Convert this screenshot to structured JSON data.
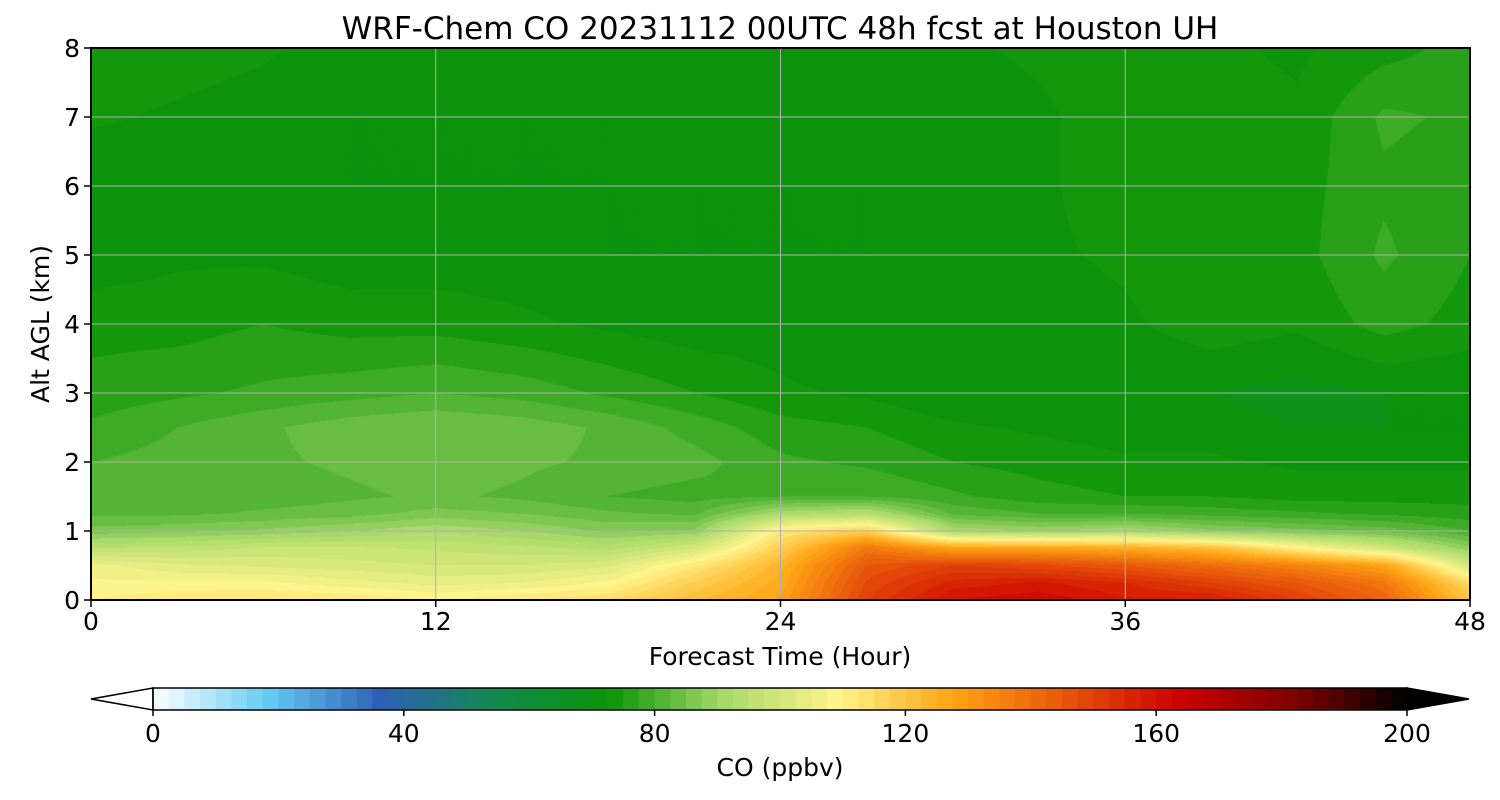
{
  "chart_data": {
    "type": "heatmap",
    "title": "WRF-Chem CO  20231112 00UTC 48h fcst at Houston UH",
    "xlabel": "Forecast Time (Hour)",
    "ylabel": "Alt AGL (km)",
    "xlim": [
      0,
      48
    ],
    "ylim": [
      0,
      8
    ],
    "x_ticks": [
      0,
      12,
      24,
      36,
      48
    ],
    "y_ticks": [
      0,
      1,
      2,
      3,
      4,
      5,
      6,
      7,
      8
    ],
    "grid": true,
    "colorbar": {
      "label": "CO  (ppbv)",
      "range": [
        0,
        200
      ],
      "ticks": [
        0,
        40,
        80,
        120,
        160,
        200
      ],
      "extend": "both",
      "colors": [
        "#ffffff",
        "#66ccf5",
        "#2d5fb5",
        "#138a50",
        "#0a9406",
        "#a6d86a",
        "#fff58c",
        "#ffa514",
        "#e8560a",
        "#cc0000",
        "#800000",
        "#000000"
      ]
    },
    "x_hours": [
      0,
      3,
      6,
      9,
      12,
      15,
      18,
      21,
      24,
      27,
      30,
      33,
      36,
      39,
      42,
      45,
      48
    ],
    "z_km": [
      0,
      0.25,
      0.5,
      0.75,
      1.0,
      1.25,
      1.5,
      2.0,
      2.5,
      3.0,
      4.0,
      5.0,
      6.0,
      7.0,
      8.0
    ],
    "values_ppbv": [
      [
        110,
        112,
        113,
        112,
        110,
        112,
        115,
        122,
        128,
        150,
        160,
        162,
        158,
        158,
        150,
        142,
        120
      ],
      [
        108,
        108,
        108,
        106,
        104,
        105,
        108,
        118,
        126,
        148,
        156,
        158,
        155,
        150,
        145,
        138,
        115
      ],
      [
        106,
        103,
        102,
        101,
        100,
        100,
        102,
        112,
        124,
        145,
        150,
        148,
        145,
        140,
        135,
        128,
        100
      ],
      [
        95,
        96,
        98,
        98,
        97,
        96,
        94,
        100,
        118,
        138,
        128,
        128,
        126,
        122,
        110,
        100,
        88
      ],
      [
        86,
        87,
        88,
        90,
        92,
        90,
        87,
        88,
        112,
        118,
        92,
        90,
        92,
        88,
        86,
        84,
        80
      ],
      [
        82,
        82,
        83,
        84,
        86,
        85,
        83,
        82,
        92,
        94,
        82,
        80,
        80,
        79,
        78,
        77,
        76
      ],
      [
        80,
        80,
        81,
        82,
        83,
        82,
        80,
        79,
        80,
        80,
        78,
        76,
        75,
        75,
        74,
        74,
        74
      ],
      [
        80,
        81,
        82,
        83,
        84,
        83,
        82,
        81,
        78,
        77,
        75,
        74,
        73,
        73,
        72,
        72,
        72
      ],
      [
        78,
        80,
        82,
        84,
        85,
        84,
        82,
        79,
        76,
        75,
        73,
        72,
        71,
        71,
        70,
        70,
        70
      ],
      [
        76,
        77,
        78,
        79,
        80,
        79,
        77,
        75,
        73,
        72,
        70,
        70,
        70,
        70,
        69,
        70,
        70
      ],
      [
        74,
        74,
        75,
        74,
        74,
        73,
        72,
        71,
        71,
        70,
        70,
        71,
        72,
        74,
        73,
        76,
        74
      ],
      [
        71,
        72,
        72,
        71,
        71,
        71,
        70,
        70,
        70,
        70,
        71,
        72,
        73,
        75,
        74,
        78,
        75
      ],
      [
        70,
        70,
        70,
        70,
        70,
        70,
        70,
        70,
        70,
        70,
        71,
        72,
        74,
        75,
        74,
        77,
        76
      ],
      [
        73,
        72,
        71,
        70,
        70,
        70,
        70,
        71,
        71,
        71,
        71,
        72,
        74,
        74,
        73,
        78,
        77
      ],
      [
        75,
        74,
        73,
        71,
        71,
        70,
        71,
        72,
        72,
        72,
        72,
        73,
        74,
        73,
        72,
        74,
        76
      ]
    ]
  }
}
